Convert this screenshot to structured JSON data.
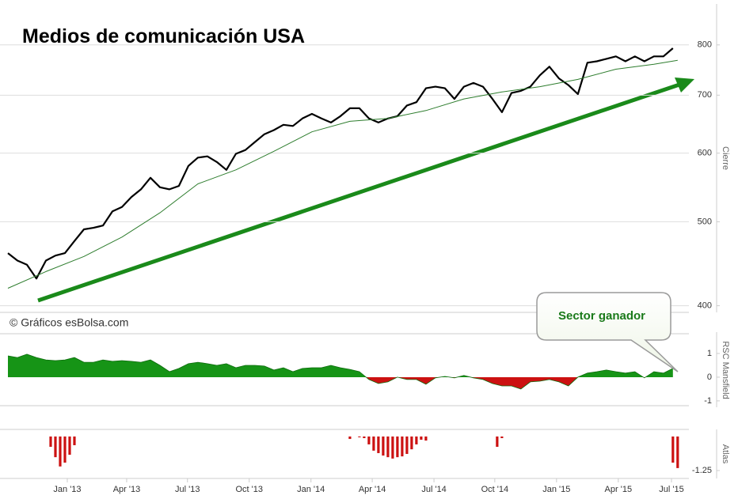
{
  "chart_data": [
    {
      "type": "line",
      "title": "Medios de comunicación USA",
      "ylabel": "Cierre",
      "log_scale": true,
      "grid": true,
      "annotation": "© Gráficos esBolsa.com",
      "xlim": [
        0,
        141.7
      ],
      "ylim": [
        393,
        892
      ],
      "yticks": [
        400,
        500,
        600,
        700,
        800
      ],
      "series": [
        {
          "color": "#000000",
          "x": [
            0,
            2,
            4,
            6,
            8,
            10,
            12,
            14,
            16,
            18,
            20,
            22,
            24,
            26,
            28,
            30,
            32,
            34,
            36,
            38,
            40,
            42,
            44,
            46,
            48,
            50,
            52,
            54,
            56,
            58,
            60,
            62,
            64,
            66,
            68,
            70,
            72,
            74,
            76,
            78,
            80,
            82,
            84,
            86,
            88,
            90,
            92,
            94,
            96,
            98,
            100,
            102,
            104,
            106,
            108,
            110,
            112,
            114,
            116,
            118,
            120,
            122,
            124,
            126,
            128,
            130,
            132,
            134,
            136,
            138,
            140
          ],
          "values": [
            460,
            451,
            446,
            430,
            451,
            457,
            460,
            475,
            490,
            492,
            495,
            514,
            520,
            534,
            545,
            562,
            548,
            545,
            550,
            580,
            593,
            595,
            586,
            574,
            599,
            605,
            618,
            631,
            638,
            647,
            645,
            658,
            666,
            658,
            651,
            662,
            676,
            676,
            658,
            651,
            658,
            662,
            681,
            687,
            713,
            716,
            713,
            693,
            716,
            723,
            716,
            693,
            669,
            704,
            708,
            716,
            738,
            755,
            732,
            719,
            702,
            763,
            766,
            771,
            776,
            766,
            776,
            766,
            776,
            776,
            793
          ]
        },
        {
          "color": "#2e7d2e",
          "x": [
            0,
            8,
            16,
            24,
            32,
            40,
            48,
            56,
            64,
            72,
            80,
            88,
            96,
            104,
            112,
            120,
            128,
            136,
            141
          ],
          "values": [
            419,
            438,
            456,
            480,
            512,
            553,
            574,
            603,
            635,
            653,
            658,
            672,
            693,
            706,
            716,
            730,
            750,
            760,
            768
          ]
        }
      ]
    },
    {
      "type": "area",
      "ylabel": "RSC Mansfield",
      "annotation": "Sector ganador",
      "xlim": [
        0,
        141.7
      ],
      "ylim": [
        -1.27,
        1.9
      ],
      "yticks": [
        1,
        0,
        -1
      ],
      "colors": {
        "positive": "#169416",
        "negative": "#cc1111"
      },
      "x": [
        0,
        2,
        4,
        6,
        8,
        10,
        12,
        14,
        16,
        18,
        20,
        22,
        24,
        26,
        28,
        30,
        32,
        34,
        36,
        38,
        40,
        42,
        44,
        46,
        48,
        50,
        52,
        54,
        56,
        58,
        60,
        62,
        64,
        66,
        68,
        70,
        72,
        74,
        76,
        78,
        80,
        82,
        84,
        86,
        88,
        90,
        92,
        94,
        96,
        98,
        100,
        102,
        104,
        106,
        108,
        110,
        112,
        114,
        116,
        118,
        120,
        122,
        124,
        126,
        128,
        130,
        132,
        134,
        136,
        138,
        140
      ],
      "values": [
        0.9,
        0.83,
        0.97,
        0.83,
        0.73,
        0.7,
        0.73,
        0.83,
        0.63,
        0.63,
        0.73,
        0.67,
        0.7,
        0.67,
        0.63,
        0.73,
        0.5,
        0.23,
        0.37,
        0.57,
        0.63,
        0.57,
        0.5,
        0.57,
        0.4,
        0.5,
        0.5,
        0.47,
        0.3,
        0.4,
        0.23,
        0.37,
        0.4,
        0.4,
        0.5,
        0.4,
        0.33,
        0.23,
        -0.1,
        -0.27,
        -0.2,
        0,
        -0.1,
        -0.1,
        -0.3,
        -0.03,
        0.03,
        -0.03,
        0.07,
        -0.03,
        -0.1,
        -0.27,
        -0.37,
        -0.37,
        -0.5,
        -0.2,
        -0.17,
        -0.1,
        -0.2,
        -0.37,
        0,
        0.17,
        0.23,
        0.3,
        0.23,
        0.17,
        0.23,
        -0.03,
        0.23,
        0.17,
        0.37
      ]
    },
    {
      "type": "bar",
      "ylabel": "Atlas",
      "color": "#cc1111",
      "xlim": [
        0,
        141.7
      ],
      "ylim": [
        -1.54,
        0.26
      ],
      "yticks": [
        -1.25
      ],
      "xticks": [
        {
          "value": 12.5,
          "label": "Jan '13"
        },
        {
          "value": 25,
          "label": "Apr '13"
        },
        {
          "value": 37.8,
          "label": "Jul '13"
        },
        {
          "value": 50.8,
          "label": "Oct '13"
        },
        {
          "value": 63.8,
          "label": "Jan '14"
        },
        {
          "value": 76.7,
          "label": "Apr '14"
        },
        {
          "value": 89.7,
          "label": "Jul '14"
        },
        {
          "value": 102.5,
          "label": "Oct '14"
        },
        {
          "value": 115.5,
          "label": "Jan '15"
        },
        {
          "value": 128.5,
          "label": "Apr '15"
        },
        {
          "value": 139.7,
          "label": "Jul '15"
        }
      ],
      "x": [
        9,
        10,
        11,
        12,
        13,
        14,
        72,
        74,
        75,
        76,
        77,
        78,
        79,
        80,
        81,
        82,
        83,
        84,
        85,
        86,
        87,
        88,
        103,
        104,
        140,
        141
      ],
      "values": [
        -0.38,
        -0.76,
        -1.1,
        -0.96,
        -0.67,
        -0.32,
        -0.09,
        -0.03,
        -0.06,
        -0.29,
        -0.52,
        -0.61,
        -0.7,
        -0.76,
        -0.81,
        -0.76,
        -0.73,
        -0.64,
        -0.47,
        -0.29,
        -0.12,
        -0.15,
        -0.38,
        -0.06,
        -0.96,
        -1.16
      ]
    }
  ]
}
